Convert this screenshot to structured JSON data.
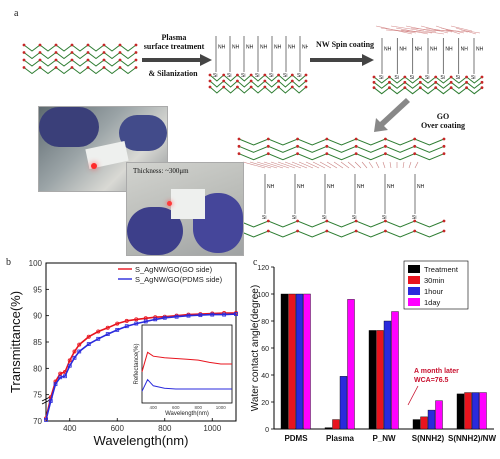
{
  "panel_labels": {
    "a": "a",
    "b": "b",
    "c": "c"
  },
  "steps": {
    "plasma": [
      "Plasma",
      "surface treatment",
      "& Silanization"
    ],
    "nw": "NW  Spin coating",
    "go": [
      "GO",
      "Over coating"
    ]
  },
  "photo_thickness": "Thickness: ~300μm",
  "molecule_labels": {
    "nh": "NH",
    "si": "Si",
    "o": "O"
  },
  "colors": {
    "red": "#e8141e",
    "blue": "#2a2adc",
    "black": "#000000",
    "magenta": "#ff00ff"
  },
  "chart_data": [
    {
      "type": "line",
      "xlabel": "Wavelength(nm)",
      "ylabel": "Transmittance(%)",
      "xlim": [
        300,
        1100
      ],
      "ylim": [
        70,
        100
      ],
      "y_axis_break": true,
      "x_ticks": [
        "400",
        "600",
        "800",
        "1000"
      ],
      "y_ticks": [
        "70",
        "75",
        "80",
        "85",
        "90",
        "95",
        "100"
      ],
      "legend": {
        "placement": "top-right"
      },
      "series": [
        {
          "name": "S_AgNW/GO(GO side)",
          "color": "#e8141e",
          "x": [
            300,
            320,
            340,
            360,
            380,
            400,
            420,
            440,
            480,
            520,
            560,
            600,
            640,
            680,
            720,
            760,
            800,
            850,
            900,
            950,
            1000,
            1050,
            1100
          ],
          "y": [
            70.5,
            74.5,
            77.5,
            79.0,
            79.3,
            81.5,
            83.2,
            84.5,
            86.0,
            87.0,
            87.7,
            88.5,
            89.0,
            89.3,
            89.5,
            89.7,
            89.8,
            90.0,
            90.2,
            90.3,
            90.4,
            90.5,
            90.5
          ]
        },
        {
          "name": "S_AgNW/GO(PDMS side)",
          "color": "#2a2adc",
          "x": [
            300,
            320,
            340,
            360,
            380,
            400,
            420,
            440,
            480,
            520,
            560,
            600,
            640,
            680,
            720,
            760,
            800,
            850,
            900,
            950,
            1000,
            1050,
            1100
          ],
          "y": [
            70.2,
            73.8,
            77.0,
            78.3,
            78.5,
            80.5,
            82.0,
            83.2,
            84.6,
            85.6,
            86.5,
            87.3,
            88.0,
            88.5,
            88.9,
            89.3,
            89.6,
            89.8,
            90.0,
            90.1,
            90.2,
            90.2,
            90.3
          ]
        }
      ],
      "inset": {
        "xlabel": "Wavelength(nm)",
        "ylabel": "Reflectance(%)",
        "x_ticks": [
          "400",
          "600",
          "800",
          "1000"
        ],
        "series": [
          {
            "name": "GO side",
            "color": "#e8141e",
            "x": [
              300,
              350,
              400,
              500,
              600,
              700,
              800,
              900,
              1000,
              1100
            ],
            "y": [
              4.0,
              6.5,
              6.0,
              5.8,
              5.7,
              5.6,
              5.5,
              5.2,
              5.0,
              5.0
            ]
          },
          {
            "name": "PDMS side",
            "color": "#2a2adc",
            "x": [
              300,
              350,
              400,
              500,
              600,
              700,
              800,
              900,
              1000,
              1100
            ],
            "y": [
              1.5,
              3.0,
              2.2,
              1.9,
              1.8,
              1.8,
              1.8,
              1.8,
              1.8,
              1.8
            ]
          }
        ]
      }
    },
    {
      "type": "bar",
      "ylabel": "Water contact angle(degree)",
      "ylim": [
        0,
        120
      ],
      "y_ticks": [
        "0",
        "20",
        "40",
        "60",
        "80",
        "100",
        "120"
      ],
      "categories": [
        "PDMS",
        "Plasma",
        "P_NW",
        "S(NNH2)",
        "S(NNH2)/NW"
      ],
      "series": [
        {
          "name": "Treatment",
          "color": "#000000",
          "values": [
            100,
            1,
            73,
            7,
            26
          ]
        },
        {
          "name": "30min",
          "color": "#e8141e",
          "values": [
            100,
            7,
            73,
            9,
            27
          ]
        },
        {
          "name": "1hour",
          "color": "#2a2adc",
          "values": [
            100,
            39,
            80,
            14,
            27
          ]
        },
        {
          "name": "1day",
          "color": "#ff00ff",
          "values": [
            100,
            96,
            87,
            21,
            27
          ]
        }
      ],
      "legend": {
        "placement": "top-right"
      },
      "annotation": [
        "A month later",
        "WCA=76.5"
      ]
    }
  ]
}
